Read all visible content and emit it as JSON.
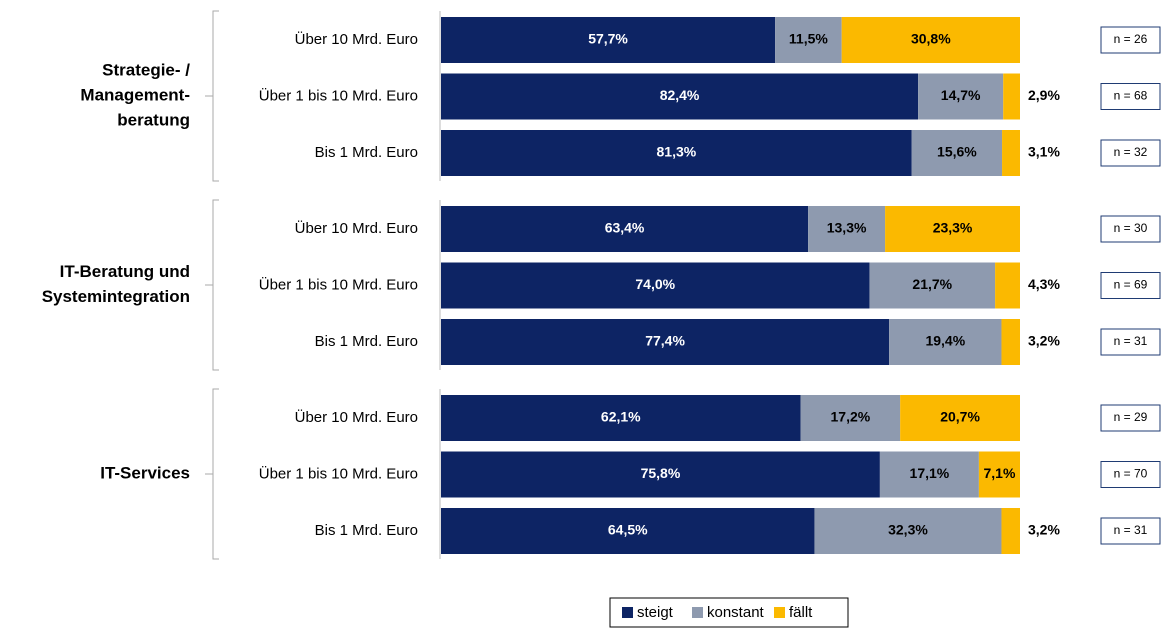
{
  "chart_data": {
    "type": "stacked-bar-horizontal",
    "groups": [
      {
        "label": [
          "Strategie- /",
          "Management-",
          "beratung"
        ]
      },
      {
        "label": [
          "IT-Beratung und",
          "Systemintegration"
        ]
      },
      {
        "label": [
          "IT-Services"
        ]
      }
    ],
    "categories": [
      "Über 10 Mrd. Euro",
      "Über 1 bis 10 Mrd. Euro",
      "Bis 1 Mrd. Euro",
      "Über 10 Mrd. Euro",
      "Über 1 bis 10 Mrd. Euro",
      "Bis 1 Mrd. Euro",
      "Über 10 Mrd. Euro",
      "Über 1 bis 10 Mrd. Euro",
      "Bis 1 Mrd. Euro"
    ],
    "n_labels": [
      "n = 26",
      "n = 68",
      "n = 32",
      "n = 30",
      "n = 69",
      "n = 31",
      "n = 29",
      "n = 70",
      "n = 31"
    ],
    "xlim": [
      0,
      100
    ],
    "series": [
      {
        "name": "steigt",
        "color": "#0d2464",
        "values": [
          57.7,
          82.4,
          81.3,
          63.4,
          74.0,
          77.4,
          62.1,
          75.8,
          64.5
        ],
        "value_labels": [
          "57,7%",
          "82,4%",
          "81,3%",
          "63,4%",
          "74,0%",
          "77,4%",
          "62,1%",
          "75,8%",
          "64,5%"
        ]
      },
      {
        "name": "konstant",
        "color": "#8e9aaf",
        "values": [
          11.5,
          14.7,
          15.6,
          13.3,
          21.7,
          19.4,
          17.2,
          17.1,
          32.3
        ],
        "value_labels": [
          "11,5%",
          "14,7%",
          "15,6%",
          "13,3%",
          "21,7%",
          "19,4%",
          "17,2%",
          "17,1%",
          "32,3%"
        ]
      },
      {
        "name": "fällt",
        "color": "#fbb900",
        "values": [
          30.8,
          2.9,
          3.1,
          23.3,
          4.3,
          3.2,
          20.7,
          7.1,
          3.2
        ],
        "value_labels": [
          "30,8%",
          "2,9%",
          "3,1%",
          "23,3%",
          "4,3%",
          "3,2%",
          "20,7%",
          "7,1%",
          "3,2%"
        ]
      }
    ],
    "legend": "bottom"
  }
}
